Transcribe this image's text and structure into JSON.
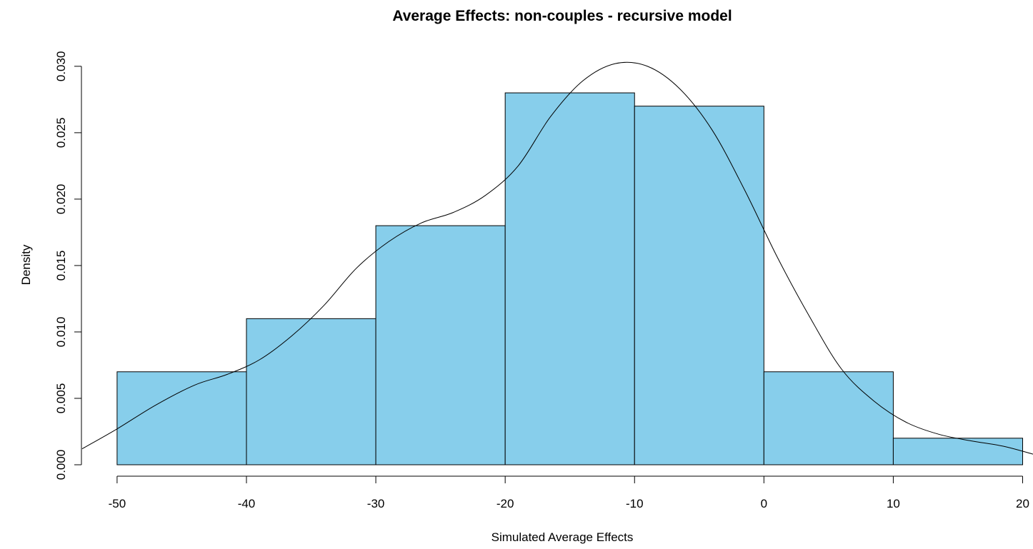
{
  "chart_data": {
    "type": "bar",
    "title": "Average Effects: non-couples - recursive model",
    "xlabel": "Simulated Average Effects",
    "ylabel": "Density",
    "xlim": [
      -52.7,
      20.8
    ],
    "ylim": [
      0.0,
      0.0301
    ],
    "x_ticks": [
      "-50",
      "-40",
      "-30",
      "-20",
      "-10",
      "0",
      "10",
      "20"
    ],
    "x_tick_values": [
      -50,
      -40,
      -30,
      -20,
      -10,
      0,
      10,
      20
    ],
    "y_ticks": [
      "0.000",
      "0.005",
      "0.010",
      "0.015",
      "0.020",
      "0.025",
      "0.030"
    ],
    "y_tick_values": [
      0.0,
      0.005,
      0.01,
      0.015,
      0.02,
      0.025,
      0.03
    ],
    "bins": [
      {
        "x0": -50,
        "x1": -40,
        "value": 0.007
      },
      {
        "x0": -40,
        "x1": -30,
        "value": 0.011
      },
      {
        "x0": -30,
        "x1": -20,
        "value": 0.018
      },
      {
        "x0": -20,
        "x1": -10,
        "value": 0.028
      },
      {
        "x0": -10,
        "x1": 0,
        "value": 0.027
      },
      {
        "x0": 0,
        "x1": 10,
        "value": 0.007
      },
      {
        "x0": 10,
        "x1": 20,
        "value": 0.002
      }
    ],
    "bar_color": "#87CEEB",
    "density_curve": [
      {
        "x": -52.7,
        "y": 0.0012
      },
      {
        "x": -50,
        "y": 0.0027
      },
      {
        "x": -47,
        "y": 0.0045
      },
      {
        "x": -44,
        "y": 0.006
      },
      {
        "x": -41.5,
        "y": 0.0068
      },
      {
        "x": -39,
        "y": 0.0079
      },
      {
        "x": -36.5,
        "y": 0.0097
      },
      {
        "x": -34,
        "y": 0.012
      },
      {
        "x": -31.5,
        "y": 0.0148
      },
      {
        "x": -29,
        "y": 0.0168
      },
      {
        "x": -26.5,
        "y": 0.0182
      },
      {
        "x": -24,
        "y": 0.019
      },
      {
        "x": -21.5,
        "y": 0.0203
      },
      {
        "x": -19,
        "y": 0.0225
      },
      {
        "x": -16.5,
        "y": 0.0262
      },
      {
        "x": -14,
        "y": 0.0289
      },
      {
        "x": -11.5,
        "y": 0.0302
      },
      {
        "x": -9,
        "y": 0.03
      },
      {
        "x": -6.5,
        "y": 0.0283
      },
      {
        "x": -4,
        "y": 0.0252
      },
      {
        "x": -1.5,
        "y": 0.0207
      },
      {
        "x": 1,
        "y": 0.0157
      },
      {
        "x": 3.5,
        "y": 0.0112
      },
      {
        "x": 6,
        "y": 0.0072
      },
      {
        "x": 8.5,
        "y": 0.0048
      },
      {
        "x": 11,
        "y": 0.0032
      },
      {
        "x": 13.5,
        "y": 0.0023
      },
      {
        "x": 16,
        "y": 0.0018
      },
      {
        "x": 18.5,
        "y": 0.0014
      },
      {
        "x": 20.8,
        "y": 0.0008
      }
    ],
    "grid": false,
    "legend": "none"
  }
}
